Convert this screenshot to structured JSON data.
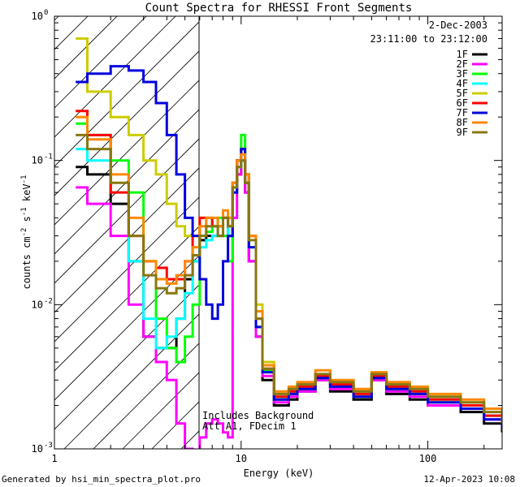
{
  "chart_data": {
    "type": "line",
    "title": "Count Spectra for RHESSI Front Segments",
    "xlabel": "Energy (keV)",
    "ylabel_parts": [
      "counts cm",
      "-2",
      " s",
      "-1",
      " keV",
      "-1"
    ],
    "xscale": "log",
    "yscale": "log",
    "xlim": [
      1,
      250
    ],
    "ylim": [
      0.001,
      1.0
    ],
    "x_ticks": [
      {
        "v": 1,
        "label": "1"
      },
      {
        "v": 10,
        "label": "10"
      },
      {
        "v": 100,
        "label": "100"
      }
    ],
    "y_ticks": [
      {
        "v": 1,
        "base": "10",
        "exp": "0"
      },
      {
        "v": 0.1,
        "base": "10",
        "exp": "-1"
      },
      {
        "v": 0.01,
        "base": "10",
        "exp": "-2"
      },
      {
        "v": 0.001,
        "base": "10",
        "exp": "-3"
      }
    ],
    "date_label": "2-Dec-2003",
    "time_label": "23:11:00 to 23:12:00",
    "attenuator_boundary_keV": 6,
    "annotation_lines": [
      "Includes Background",
      "Att A1, FDecim 1"
    ],
    "series": [
      {
        "name": "1F",
        "color": "#000000",
        "x": [
          1.3,
          1.5,
          2,
          2.5,
          3,
          3.5,
          4,
          4.5,
          5,
          5.5,
          6,
          6.5,
          7,
          7.5,
          8,
          8.5,
          9,
          9.5,
          10,
          10.5,
          11,
          12,
          13,
          15,
          18,
          20,
          25,
          30,
          40,
          50,
          60,
          80,
          100,
          150,
          200,
          250
        ],
        "y": [
          0.09,
          0.08,
          0.05,
          0.02,
          0.006,
          0.005,
          0.005,
          0.008,
          0.015,
          0.02,
          0.028,
          0.03,
          0.03,
          0.03,
          0.04,
          0.03,
          0.06,
          0.08,
          0.1,
          0.06,
          0.02,
          0.006,
          0.003,
          0.002,
          0.0022,
          0.0025,
          0.003,
          0.0025,
          0.0022,
          0.003,
          0.0024,
          0.0022,
          0.002,
          0.0018,
          0.0015,
          0.0013
        ]
      },
      {
        "name": "2F",
        "color": "#ff00ff",
        "x": [
          1.3,
          1.5,
          2,
          2.5,
          3,
          3.5,
          4,
          4.5,
          5,
          5.5,
          6,
          6.5,
          7,
          7.5,
          8,
          8.5,
          9,
          9.5,
          10,
          10.5,
          11,
          12,
          13,
          15,
          18,
          20,
          25,
          30,
          40,
          50,
          60,
          80,
          100,
          150,
          200,
          250
        ],
        "y": [
          0.065,
          0.05,
          0.03,
          0.01,
          0.006,
          0.004,
          0.003,
          0.0015,
          0.001,
          0.0008,
          0.0012,
          0.0015,
          0.0016,
          0.0015,
          0.0013,
          0.0012,
          0.04,
          0.08,
          0.1,
          0.06,
          0.02,
          0.006,
          0.0032,
          0.0021,
          0.0023,
          0.0025,
          0.003,
          0.0026,
          0.0023,
          0.003,
          0.0025,
          0.0023,
          0.002,
          0.0019,
          0.0016,
          0.0014
        ]
      },
      {
        "name": "3F",
        "color": "#00ff00",
        "x": [
          1.3,
          1.5,
          2,
          2.5,
          3,
          3.5,
          4,
          4.5,
          5,
          5.5,
          6,
          6.5,
          7,
          7.5,
          8,
          8.5,
          9,
          9.5,
          10,
          10.5,
          11,
          12,
          13,
          15,
          18,
          20,
          25,
          30,
          40,
          50,
          60,
          80,
          100,
          150,
          200,
          250
        ],
        "y": [
          0.18,
          0.15,
          0.1,
          0.06,
          0.02,
          0.008,
          0.005,
          0.004,
          0.006,
          0.01,
          0.03,
          0.032,
          0.035,
          0.04,
          0.03,
          0.02,
          0.07,
          0.1,
          0.15,
          0.08,
          0.03,
          0.007,
          0.0035,
          0.0022,
          0.0024,
          0.0026,
          0.0031,
          0.0027,
          0.0023,
          0.0031,
          0.0026,
          0.0024,
          0.0021,
          0.002,
          0.0017,
          0.0014
        ]
      },
      {
        "name": "4F",
        "color": "#00ffff",
        "x": [
          1.3,
          1.5,
          2,
          2.5,
          3,
          3.5,
          4,
          4.5,
          5,
          5.5,
          6,
          6.5,
          7,
          7.5,
          8,
          8.5,
          9,
          9.5,
          10,
          10.5,
          11,
          12,
          13,
          15,
          18,
          20,
          25,
          30,
          40,
          50,
          60,
          80,
          100,
          150,
          200,
          250
        ],
        "y": [
          0.12,
          0.1,
          0.06,
          0.02,
          0.008,
          0.005,
          0.006,
          0.008,
          0.012,
          0.02,
          0.025,
          0.028,
          0.03,
          0.035,
          0.04,
          0.03,
          0.06,
          0.09,
          0.12,
          0.07,
          0.025,
          0.007,
          0.0034,
          0.0023,
          0.0025,
          0.0027,
          0.0032,
          0.0028,
          0.0024,
          0.0032,
          0.0027,
          0.0025,
          0.0022,
          0.002,
          0.0017,
          0.0015
        ]
      },
      {
        "name": "5F",
        "color": "#cccc00",
        "x": [
          1.3,
          1.5,
          2,
          2.5,
          3,
          3.5,
          4,
          4.5,
          5,
          5.5,
          6,
          6.5,
          7,
          7.5,
          8,
          8.5,
          9,
          9.5,
          10,
          10.5,
          11,
          12,
          13,
          15,
          18,
          20,
          25,
          30,
          40,
          50,
          60,
          80,
          100,
          150,
          200,
          250
        ],
        "y": [
          0.7,
          0.3,
          0.2,
          0.15,
          0.1,
          0.08,
          0.05,
          0.035,
          0.03,
          0.03,
          0.04,
          0.04,
          0.035,
          0.035,
          0.04,
          0.04,
          0.07,
          0.1,
          0.1,
          0.07,
          0.03,
          0.01,
          0.004,
          0.0024,
          0.0026,
          0.0028,
          0.0033,
          0.0029,
          0.0025,
          0.0033,
          0.0028,
          0.0026,
          0.0023,
          0.0021,
          0.0018,
          0.0016
        ]
      },
      {
        "name": "6F",
        "color": "#ff0000",
        "x": [
          1.3,
          1.5,
          2,
          2.5,
          3,
          3.5,
          4,
          4.5,
          5,
          5.5,
          6,
          6.5,
          7,
          7.5,
          8,
          8.5,
          9,
          9.5,
          10,
          10.5,
          11,
          12,
          13,
          15,
          18,
          20,
          25,
          30,
          40,
          50,
          60,
          80,
          100,
          150,
          200,
          250
        ],
        "y": [
          0.22,
          0.15,
          0.06,
          0.03,
          0.02,
          0.018,
          0.015,
          0.015,
          0.02,
          0.03,
          0.04,
          0.04,
          0.035,
          0.035,
          0.04,
          0.035,
          0.07,
          0.1,
          0.12,
          0.08,
          0.03,
          0.008,
          0.0036,
          0.0023,
          0.0025,
          0.0027,
          0.0032,
          0.0028,
          0.0024,
          0.0032,
          0.0027,
          0.0025,
          0.0022,
          0.002,
          0.0017,
          0.0015
        ]
      },
      {
        "name": "7F",
        "color": "#0000dd",
        "x": [
          1.3,
          1.5,
          2,
          2.5,
          3,
          3.5,
          4,
          4.5,
          5,
          5.5,
          6,
          6.5,
          7,
          7.5,
          8,
          8.5,
          9,
          9.5,
          10,
          10.5,
          11,
          12,
          13,
          15,
          18,
          20,
          25,
          30,
          40,
          50,
          60,
          80,
          100,
          150,
          200,
          250
        ],
        "y": [
          0.35,
          0.4,
          0.45,
          0.42,
          0.35,
          0.25,
          0.15,
          0.08,
          0.04,
          0.03,
          0.015,
          0.01,
          0.008,
          0.01,
          0.02,
          0.03,
          0.06,
          0.1,
          0.12,
          0.07,
          0.025,
          0.007,
          0.0034,
          0.0022,
          0.0024,
          0.0026,
          0.0031,
          0.0027,
          0.0023,
          0.0031,
          0.0026,
          0.0024,
          0.0021,
          0.0019,
          0.0016,
          0.0014
        ]
      },
      {
        "name": "8F",
        "color": "#ff8800",
        "x": [
          1.3,
          1.5,
          2,
          2.5,
          3,
          3.5,
          4,
          4.5,
          5,
          5.5,
          6,
          6.5,
          7,
          7.5,
          8,
          8.5,
          9,
          9.5,
          10,
          10.5,
          11,
          12,
          13,
          15,
          18,
          20,
          25,
          30,
          40,
          50,
          60,
          80,
          100,
          150,
          200,
          250
        ],
        "y": [
          0.2,
          0.14,
          0.08,
          0.04,
          0.02,
          0.015,
          0.014,
          0.016,
          0.02,
          0.025,
          0.035,
          0.04,
          0.04,
          0.035,
          0.045,
          0.04,
          0.07,
          0.1,
          0.11,
          0.08,
          0.03,
          0.009,
          0.0038,
          0.0025,
          0.0027,
          0.0029,
          0.0035,
          0.003,
          0.0026,
          0.0034,
          0.0029,
          0.0027,
          0.0024,
          0.0022,
          0.0019,
          0.0016
        ]
      },
      {
        "name": "9F",
        "color": "#887711",
        "x": [
          1.3,
          1.5,
          2,
          2.5,
          3,
          3.5,
          4,
          4.5,
          5,
          5.5,
          6,
          6.5,
          7,
          7.5,
          8,
          8.5,
          9,
          9.5,
          10,
          10.5,
          11,
          12,
          13,
          15,
          18,
          20,
          25,
          30,
          40,
          50,
          60,
          80,
          100,
          150,
          200,
          250
        ],
        "y": [
          0.15,
          0.12,
          0.07,
          0.03,
          0.016,
          0.013,
          0.012,
          0.013,
          0.016,
          0.022,
          0.03,
          0.035,
          0.035,
          0.03,
          0.04,
          0.035,
          0.065,
          0.09,
          0.1,
          0.07,
          0.028,
          0.008,
          0.0036,
          0.0024,
          0.0026,
          0.0028,
          0.0033,
          0.0029,
          0.0025,
          0.0033,
          0.0028,
          0.0026,
          0.0023,
          0.0021,
          0.0018,
          0.0015
        ]
      }
    ]
  },
  "footer": {
    "generated": "Generated by hsi_min_spectra_plot.pro",
    "timestamp": "12-Apr-2023 10:08"
  }
}
